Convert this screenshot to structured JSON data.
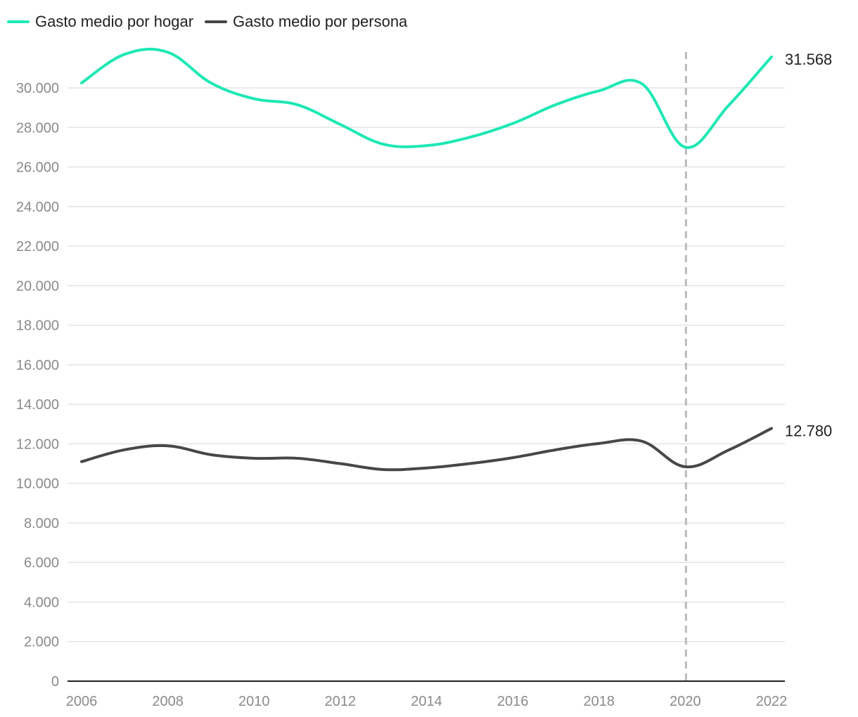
{
  "chart_data": {
    "type": "line",
    "x": [
      2006,
      2007,
      2008,
      2009,
      2010,
      2011,
      2012,
      2013,
      2014,
      2015,
      2016,
      2017,
      2018,
      2019,
      2020,
      2021,
      2022
    ],
    "series": [
      {
        "name": "Gasto medio por hogar",
        "color": "#1ee8b4",
        "values": [
          30250,
          31700,
          31800,
          30250,
          29450,
          29150,
          28150,
          27150,
          27080,
          27500,
          28200,
          29150,
          29850,
          30200,
          27000,
          29100,
          31568
        ],
        "end_label": "31.568"
      },
      {
        "name": "Gasto medio por persona",
        "color": "#474747",
        "values": [
          11100,
          11700,
          11900,
          11450,
          11270,
          11270,
          11000,
          10700,
          10780,
          11000,
          11300,
          11700,
          12020,
          12130,
          10840,
          11680,
          12780
        ],
        "end_label": "12.780"
      }
    ],
    "y_ticks": [
      "0",
      "2.000",
      "4.000",
      "6.000",
      "8.000",
      "10.000",
      "12.000",
      "14.000",
      "16.000",
      "18.000",
      "20.000",
      "22.000",
      "24.000",
      "26.000",
      "28.000",
      "30.000"
    ],
    "x_ticks": [
      "2006",
      "2008",
      "2010",
      "2012",
      "2014",
      "2016",
      "2018",
      "2020",
      "2022"
    ],
    "ylim": [
      0,
      30000
    ],
    "grid": true,
    "legend_position": "top-left",
    "reference_line": {
      "x": 2020,
      "style": "dashed",
      "color": "#bbbbbb"
    }
  }
}
